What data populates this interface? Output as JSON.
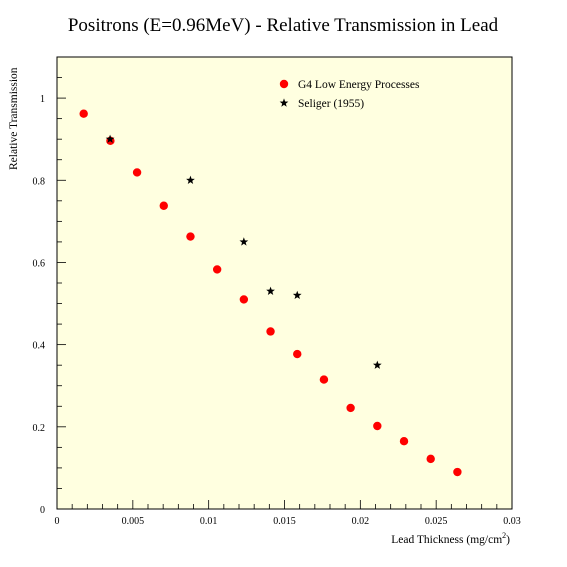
{
  "chart_data": {
    "type": "scatter",
    "title": "Positrons (E=0.96MeV) - Relative Transmission in Lead",
    "xlabel": "Lead Thickness (mg/cm",
    "xlabel_sup": "2",
    "xlabel_suffix": ")",
    "ylabel": "Relative Transmission",
    "xlim": [
      0,
      0.03
    ],
    "ylim": [
      0,
      1.1
    ],
    "x_ticks": [
      0,
      0.005,
      0.01,
      0.015,
      0.02,
      0.025,
      0.03
    ],
    "x_tick_labels": [
      "0",
      "0.005",
      "0.01",
      "0.015",
      "0.02",
      "0.025",
      "0.03"
    ],
    "y_ticks": [
      0,
      0.2,
      0.4,
      0.6,
      0.8,
      1
    ],
    "y_tick_labels": [
      "0",
      "0.2",
      "0.4",
      "0.6",
      "0.8",
      "1"
    ],
    "background": "#ffffe0",
    "legend_position": "top-right",
    "series": [
      {
        "name": "G4 Low Energy Processes",
        "marker": "circle",
        "color": "#ff0000",
        "points": [
          [
            0.00176,
            0.962
          ],
          [
            0.00352,
            0.896
          ],
          [
            0.00528,
            0.819
          ],
          [
            0.00704,
            0.738
          ],
          [
            0.0088,
            0.663
          ],
          [
            0.01056,
            0.583
          ],
          [
            0.01232,
            0.51
          ],
          [
            0.01408,
            0.432
          ],
          [
            0.01584,
            0.377
          ],
          [
            0.0176,
            0.315
          ],
          [
            0.01936,
            0.246
          ],
          [
            0.02112,
            0.202
          ],
          [
            0.02288,
            0.165
          ],
          [
            0.02464,
            0.122
          ],
          [
            0.0264,
            0.09
          ]
        ]
      },
      {
        "name": "Seliger (1955)",
        "marker": "star",
        "color": "#000000",
        "points": [
          [
            0.0035,
            0.9
          ],
          [
            0.0088,
            0.8
          ],
          [
            0.01232,
            0.65
          ],
          [
            0.01408,
            0.53
          ],
          [
            0.01584,
            0.52
          ],
          [
            0.02112,
            0.35
          ]
        ]
      }
    ]
  }
}
